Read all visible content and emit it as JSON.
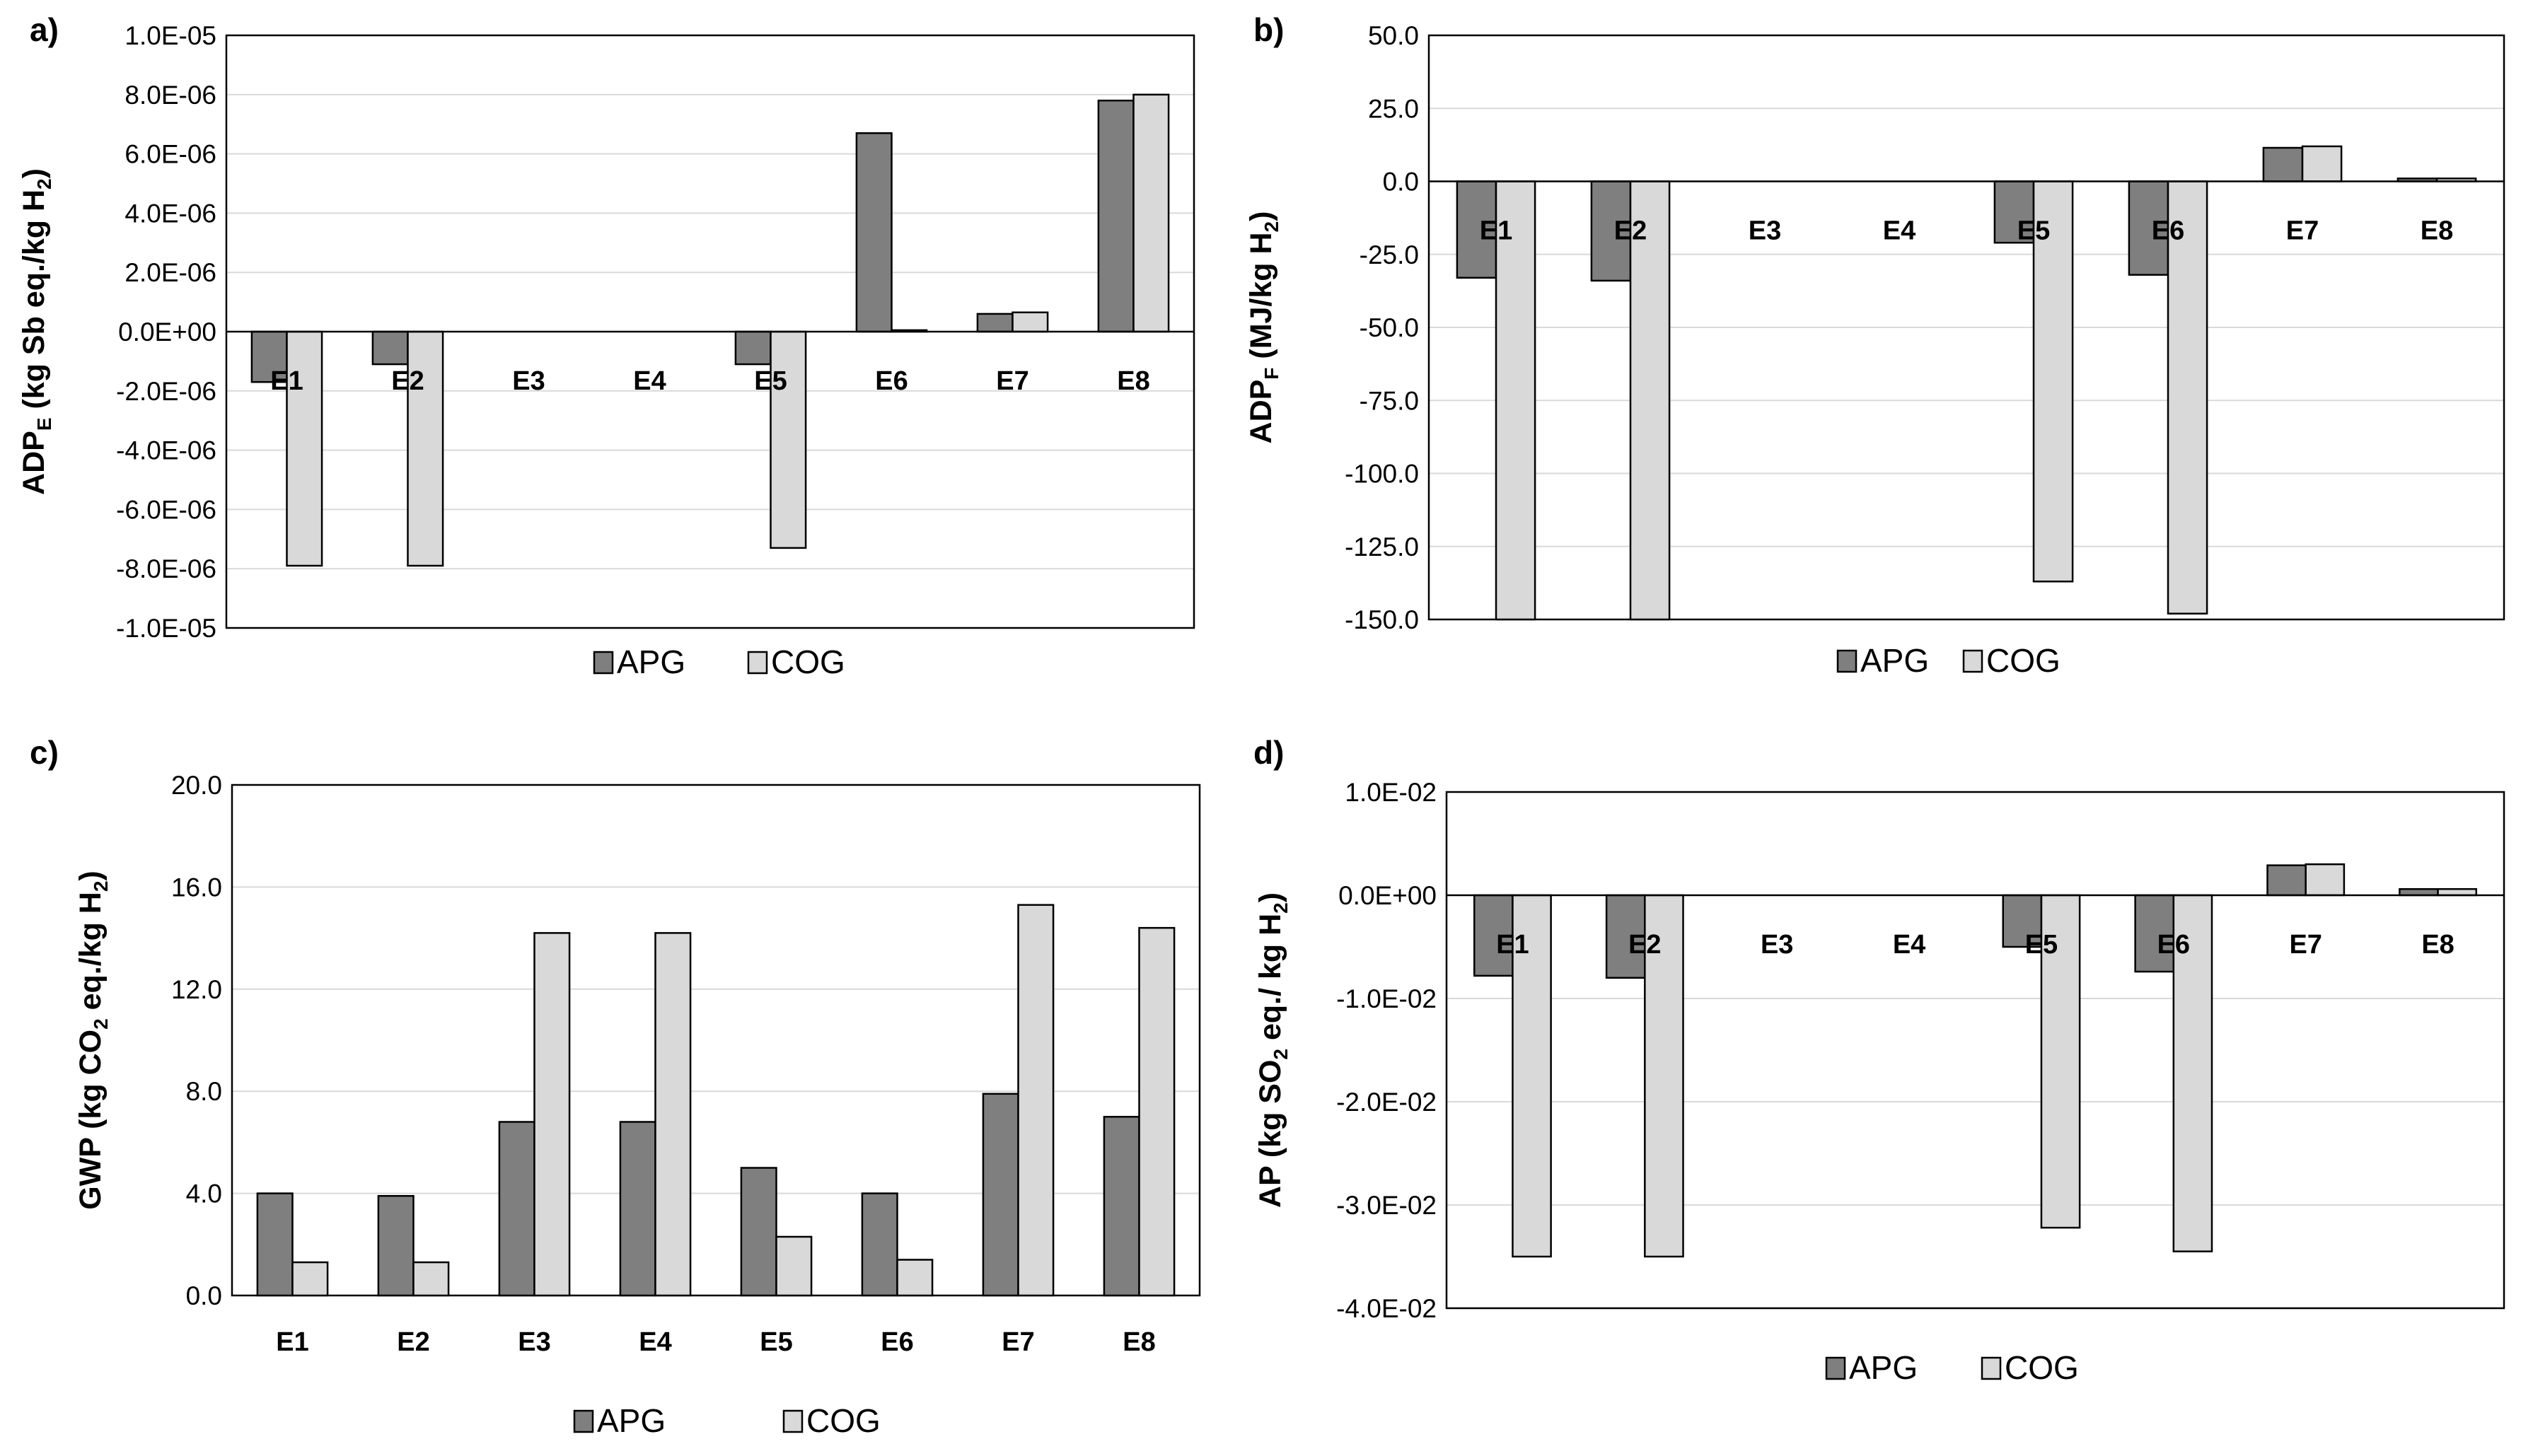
{
  "colors": {
    "apg": "#7f7f7f",
    "cog": "#d9d9d9",
    "grid": "#d9d9d9",
    "axis": "#000000"
  },
  "chart_data": [
    {
      "id": "a",
      "panel_label": "a)",
      "type": "bar",
      "ylabel_parts": [
        [
          "ADP",
          ""
        ],
        [
          "E",
          "sub"
        ],
        [
          " (kg Sb eq./kg H",
          ""
        ],
        [
          "2",
          "sub"
        ],
        [
          ")",
          ""
        ]
      ],
      "ylim": [
        -1e-05,
        1e-05
      ],
      "yticks": [
        1e-05,
        8e-06,
        6e-06,
        4e-06,
        2e-06,
        0,
        -2e-06,
        -4e-06,
        -6e-06,
        -8e-06,
        -1e-05
      ],
      "ytick_labels": [
        "1.0E-05",
        "8.0E-06",
        "6.0E-06",
        "4.0E-06",
        "2.0E-06",
        "0.0E+00",
        "-2.0E-06",
        "-4.0E-06",
        "-6.0E-06",
        "-8.0E-06",
        "-1.0E-05"
      ],
      "categories": [
        "E1",
        "E2",
        "E3",
        "E4",
        "E5",
        "E6",
        "E7",
        "E8"
      ],
      "category_label_position": "zero-line",
      "series": [
        {
          "name": "APG",
          "values": [
            -1.7e-06,
            -1.1e-06,
            0,
            0,
            -1.1e-06,
            6.7e-06,
            6e-07,
            7.8e-06
          ]
        },
        {
          "name": "COG",
          "values": [
            -7.9e-06,
            -7.9e-06,
            0,
            0,
            -7.3e-06,
            5e-08,
            6.5e-07,
            8e-06
          ]
        }
      ],
      "legend": [
        "APG",
        "COG"
      ]
    },
    {
      "id": "b",
      "panel_label": "b)",
      "type": "bar",
      "ylabel_parts": [
        [
          "ADP",
          ""
        ],
        [
          "F",
          "sub"
        ],
        [
          " (MJ/kg H",
          ""
        ],
        [
          "2",
          "sub"
        ],
        [
          ")",
          ""
        ]
      ],
      "ylim": [
        -150,
        50
      ],
      "yticks": [
        50,
        25,
        0,
        -25,
        -50,
        -75,
        -100,
        -125,
        -150
      ],
      "ytick_labels": [
        "50.0",
        "25.0",
        "0.0",
        "-25.0",
        "-50.0",
        "-75.0",
        "-100.0",
        "-125.0",
        "-150.0"
      ],
      "categories": [
        "E1",
        "E2",
        "E3",
        "E4",
        "E5",
        "E6",
        "E7",
        "E8"
      ],
      "category_label_position": "zero-line",
      "series": [
        {
          "name": "APG",
          "values": [
            -33,
            -34,
            0,
            0,
            -21,
            -32,
            11.5,
            1.0
          ]
        },
        {
          "name": "COG",
          "values": [
            -150,
            -150,
            0,
            0,
            -137,
            -148,
            12,
            1.0
          ]
        }
      ],
      "legend": [
        "APG",
        "COG"
      ]
    },
    {
      "id": "c",
      "panel_label": "c)",
      "type": "bar",
      "ylabel_parts": [
        [
          "GWP (kg CO",
          ""
        ],
        [
          "2",
          "sub"
        ],
        [
          " eq./kg H",
          ""
        ],
        [
          "2",
          "sub"
        ],
        [
          ")",
          ""
        ]
      ],
      "ylim": [
        0,
        20
      ],
      "yticks": [
        20,
        16,
        12,
        8,
        4,
        0
      ],
      "ytick_labels": [
        "20.0",
        "16.0",
        "12.0",
        "8.0",
        "4.0",
        "0.0"
      ],
      "categories": [
        "E1",
        "E2",
        "E3",
        "E4",
        "E5",
        "E6",
        "E7",
        "E8"
      ],
      "category_label_position": "below-axis",
      "series": [
        {
          "name": "APG",
          "values": [
            4.0,
            3.9,
            6.8,
            6.8,
            5.0,
            4.0,
            7.9,
            7.0
          ]
        },
        {
          "name": "COG",
          "values": [
            1.3,
            1.3,
            14.2,
            14.2,
            2.3,
            1.4,
            15.3,
            14.4
          ]
        }
      ],
      "legend": [
        "APG",
        "COG"
      ]
    },
    {
      "id": "d",
      "panel_label": "d)",
      "type": "bar",
      "ylabel_parts": [
        [
          "AP (kg SO",
          ""
        ],
        [
          "2",
          "sub"
        ],
        [
          " eq./ kg H",
          ""
        ],
        [
          "2",
          "sub"
        ],
        [
          ")",
          ""
        ]
      ],
      "ylim": [
        -0.04,
        0.01
      ],
      "yticks": [
        0.01,
        0,
        -0.01,
        -0.02,
        -0.03,
        -0.04
      ],
      "ytick_labels": [
        "1.0E-02",
        "0.0E+00",
        "-1.0E-02",
        "-2.0E-02",
        "-3.0E-02",
        "-4.0E-02"
      ],
      "categories": [
        "E1",
        "E2",
        "E3",
        "E4",
        "E5",
        "E6",
        "E7",
        "E8"
      ],
      "category_label_position": "zero-line",
      "series": [
        {
          "name": "APG",
          "values": [
            -0.0078,
            -0.008,
            0,
            0,
            -0.005,
            -0.0074,
            0.0029,
            0.0006
          ]
        },
        {
          "name": "COG",
          "values": [
            -0.035,
            -0.035,
            0,
            0,
            -0.0322,
            -0.0345,
            0.003,
            0.0006
          ]
        }
      ],
      "legend": [
        "APG",
        "COG"
      ]
    }
  ]
}
